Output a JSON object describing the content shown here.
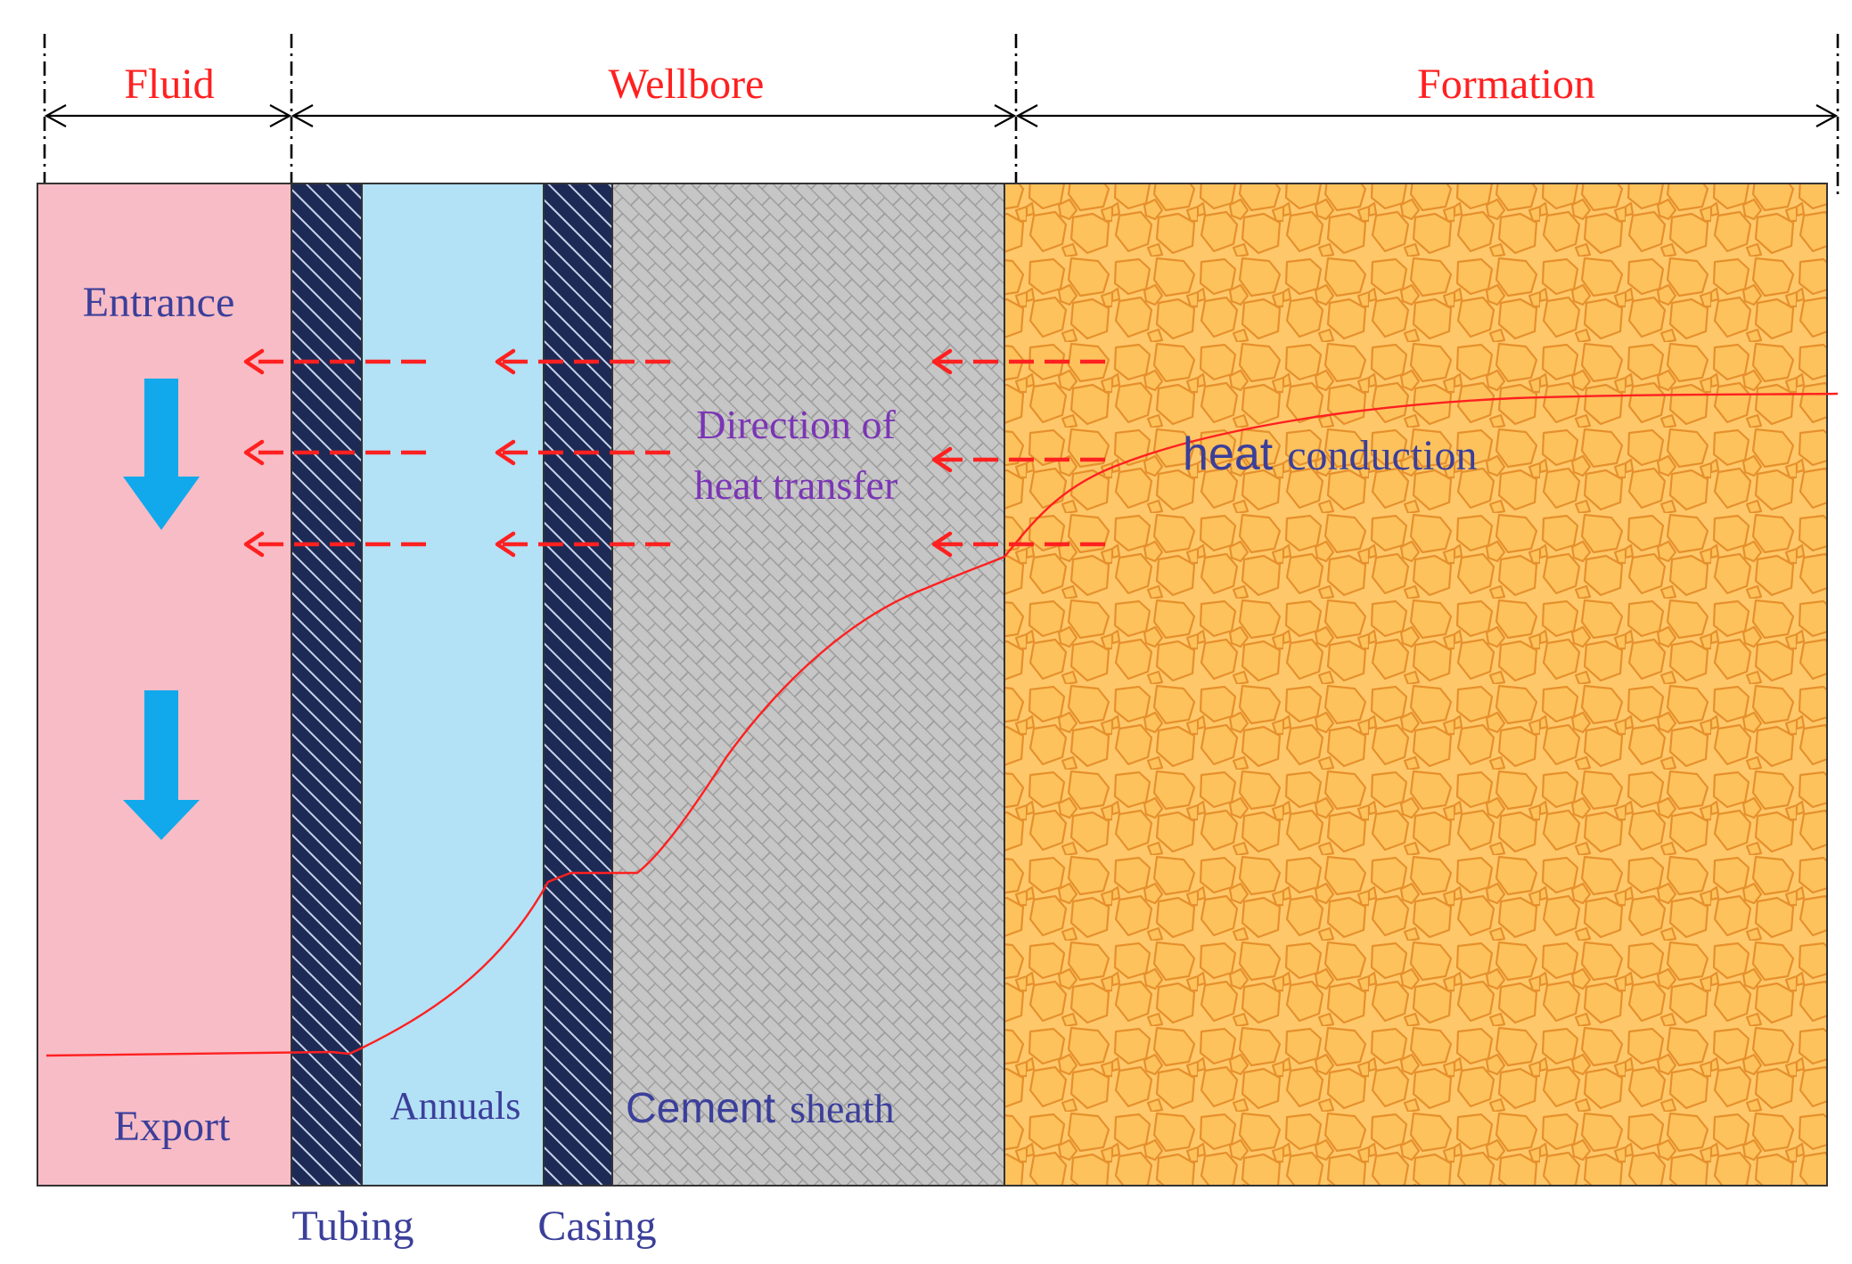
{
  "header": {
    "fluid": "Fluid",
    "wellbore": "Wellbore",
    "formation": "Formation"
  },
  "labels": {
    "entrance": "Entrance",
    "export": "Export",
    "annulus": "Annuals",
    "cement": "Cement",
    "sheath": "sheath",
    "direction_line1": "Direction of",
    "direction_line2": "heat transfer",
    "heat": "heat",
    "conduction": "conduction",
    "tubing": "Tubing",
    "casing": "Casing"
  },
  "colors": {
    "header_text": "#ff2020",
    "blue_text": "#3b3f9a",
    "purple_text": "#7b35b5",
    "fluid": "#f8bcc6",
    "annulus": "#b3e1f6",
    "steel": "#1d2a55",
    "cement": "#c6c6c6",
    "formation": "#fec86a",
    "rock_edge": "#e6902c",
    "heat_arrow": "#ff2020",
    "flow_arrow": "#11a9ec",
    "curve": "#ff2020"
  },
  "icons": {
    "flow": "down-arrow-icon",
    "heat": "dashed-left-arrow-icon"
  }
}
